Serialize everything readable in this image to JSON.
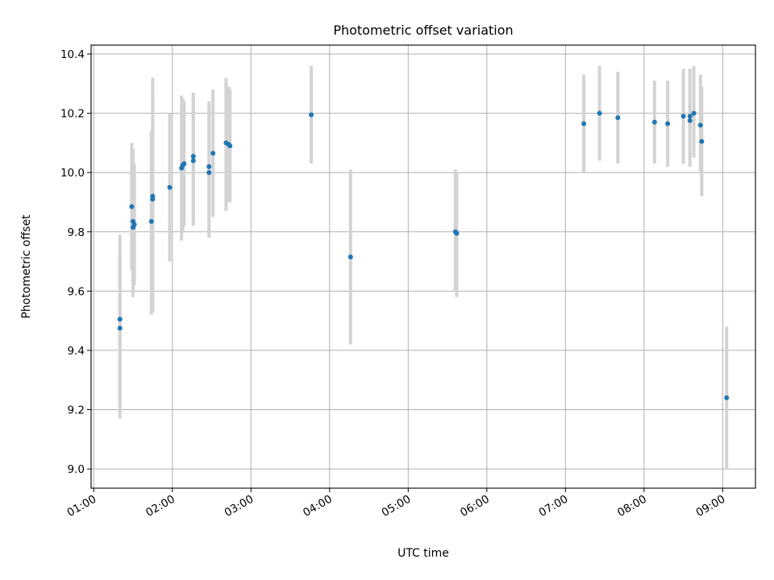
{
  "chart_data": {
    "type": "scatter",
    "title": "Photometric offset variation",
    "xlabel": "UTC time",
    "ylabel": "Photometric offset",
    "xlim": [
      "00:58",
      "09:25"
    ],
    "ylim": [
      8.935,
      10.43
    ],
    "grid": true,
    "x_tick_labels": [
      "01:00",
      "02:00",
      "03:00",
      "04:00",
      "05:00",
      "06:00",
      "07:00",
      "08:00",
      "09:00"
    ],
    "y_tick_labels": [
      "9.0",
      "9.2",
      "9.4",
      "9.6",
      "9.8",
      "10.0",
      "10.2",
      "10.4"
    ],
    "colors": {
      "point": "#1f77b4",
      "errorbar": "#d3d3d3",
      "grid": "#b0b0b0"
    },
    "points": [
      {
        "x": "01:20",
        "y": 9.475,
        "lo": 9.17,
        "hi": 9.72
      },
      {
        "x": "01:20",
        "y": 9.505,
        "lo": 9.22,
        "hi": 9.79
      },
      {
        "x": "01:29",
        "y": 9.885,
        "lo": 9.67,
        "hi": 10.1
      },
      {
        "x": "01:30",
        "y": 9.815,
        "lo": 9.58,
        "hi": 10.08
      },
      {
        "x": "01:30",
        "y": 9.835,
        "lo": 9.6,
        "hi": 10.06
      },
      {
        "x": "01:31",
        "y": 9.825,
        "lo": 9.62,
        "hi": 10.03
      },
      {
        "x": "01:44",
        "y": 9.835,
        "lo": 9.52,
        "hi": 10.14
      },
      {
        "x": "01:45",
        "y": 9.91,
        "lo": 9.53,
        "hi": 10.32
      },
      {
        "x": "01:45",
        "y": 9.92,
        "lo": 9.58,
        "hi": 10.25
      },
      {
        "x": "01:58",
        "y": 9.95,
        "lo": 9.7,
        "hi": 10.2
      },
      {
        "x": "02:07",
        "y": 10.015,
        "lo": 9.77,
        "hi": 10.26
      },
      {
        "x": "02:08",
        "y": 10.025,
        "lo": 9.8,
        "hi": 10.25
      },
      {
        "x": "02:09",
        "y": 10.03,
        "lo": 9.82,
        "hi": 10.24
      },
      {
        "x": "02:16",
        "y": 10.04,
        "lo": 9.82,
        "hi": 10.27
      },
      {
        "x": "02:16",
        "y": 10.055,
        "lo": 9.84,
        "hi": 10.26
      },
      {
        "x": "02:28",
        "y": 10.02,
        "lo": 9.78,
        "hi": 10.23
      },
      {
        "x": "02:28",
        "y": 10.0,
        "lo": 9.79,
        "hi": 10.24
      },
      {
        "x": "02:31",
        "y": 10.065,
        "lo": 9.85,
        "hi": 10.28
      },
      {
        "x": "02:41",
        "y": 10.1,
        "lo": 9.87,
        "hi": 10.32
      },
      {
        "x": "02:43",
        "y": 10.095,
        "lo": 9.9,
        "hi": 10.29
      },
      {
        "x": "02:44",
        "y": 10.09,
        "lo": 9.9,
        "hi": 10.28
      },
      {
        "x": "03:46",
        "y": 10.195,
        "lo": 10.03,
        "hi": 10.36
      },
      {
        "x": "04:16",
        "y": 9.715,
        "lo": 9.42,
        "hi": 10.01
      },
      {
        "x": "05:36",
        "y": 9.8,
        "lo": 9.6,
        "hi": 10.01
      },
      {
        "x": "05:37",
        "y": 9.795,
        "lo": 9.58,
        "hi": 10.0
      },
      {
        "x": "07:14",
        "y": 10.165,
        "lo": 10.0,
        "hi": 10.33
      },
      {
        "x": "07:26",
        "y": 10.2,
        "lo": 10.04,
        "hi": 10.36
      },
      {
        "x": "07:40",
        "y": 10.185,
        "lo": 10.03,
        "hi": 10.34
      },
      {
        "x": "08:08",
        "y": 10.17,
        "lo": 10.03,
        "hi": 10.31
      },
      {
        "x": "08:18",
        "y": 10.165,
        "lo": 10.02,
        "hi": 10.31
      },
      {
        "x": "08:30",
        "y": 10.19,
        "lo": 10.03,
        "hi": 10.35
      },
      {
        "x": "08:35",
        "y": 10.175,
        "lo": 10.02,
        "hi": 10.35
      },
      {
        "x": "08:35",
        "y": 10.19,
        "lo": 10.04,
        "hi": 10.35
      },
      {
        "x": "08:38",
        "y": 10.2,
        "lo": 10.05,
        "hi": 10.36
      },
      {
        "x": "08:43",
        "y": 10.16,
        "lo": 10.0,
        "hi": 10.33
      },
      {
        "x": "08:44",
        "y": 10.105,
        "lo": 9.92,
        "hi": 10.29
      },
      {
        "x": "09:03",
        "y": 9.24,
        "lo": 9.0,
        "hi": 9.48
      }
    ]
  }
}
